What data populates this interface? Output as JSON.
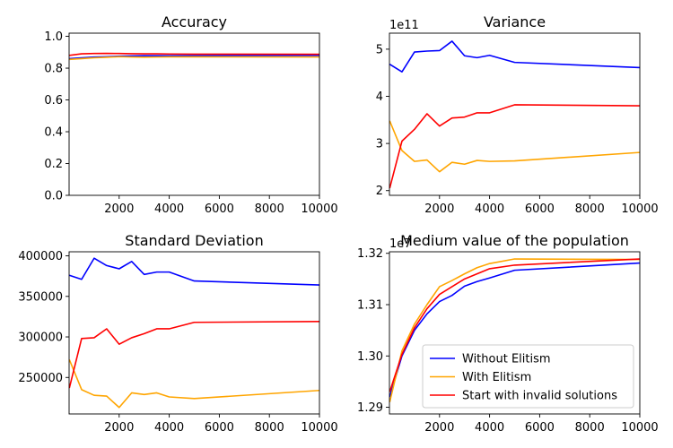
{
  "colors": {
    "without_elitism": "#0000ff",
    "with_elitism": "#ffa500",
    "invalid_start": "#ff0000"
  },
  "legend": {
    "placement": "lower-right",
    "in_panel": 3,
    "entries": [
      "Without Elitism",
      "With Elitism",
      "Start with invalid solutions"
    ]
  },
  "chart_data": [
    {
      "type": "line",
      "title": "Accuracy",
      "xlabel": "",
      "ylabel": "",
      "xlim": [
        0,
        10000
      ],
      "ylim": [
        0,
        1.02
      ],
      "xticks": [
        2000,
        4000,
        6000,
        8000,
        10000
      ],
      "xtick_labels": [
        "2000",
        "4000",
        "6000",
        "8000",
        "10000"
      ],
      "yticks": [
        0,
        0.2,
        0.4,
        0.6,
        0.8,
        1.0
      ],
      "ytick_labels": [
        "0.0",
        "0.2",
        "0.4",
        "0.6",
        "0.8",
        "1.0"
      ],
      "offset_text": "",
      "grid": false,
      "x": [
        10,
        500,
        1000,
        1500,
        2000,
        2500,
        3000,
        3500,
        4000,
        5000,
        10000
      ],
      "series": [
        {
          "name": "Without Elitism",
          "color_key": "without_elitism",
          "values": [
            0.86,
            0.865,
            0.87,
            0.872,
            0.875,
            0.877,
            0.878,
            0.878,
            0.878,
            0.879,
            0.88
          ]
        },
        {
          "name": "With Elitism",
          "color_key": "with_elitism",
          "values": [
            0.855,
            0.86,
            0.865,
            0.868,
            0.872,
            0.87,
            0.869,
            0.87,
            0.871,
            0.871,
            0.87
          ]
        },
        {
          "name": "Start with invalid solutions",
          "color_key": "invalid_start",
          "values": [
            0.88,
            0.89,
            0.892,
            0.893,
            0.892,
            0.891,
            0.89,
            0.89,
            0.889,
            0.888,
            0.887
          ]
        }
      ]
    },
    {
      "type": "line",
      "title": "Variance",
      "xlabel": "",
      "ylabel": "",
      "xlim": [
        0,
        10000
      ],
      "ylim": [
        1.9,
        5.34
      ],
      "xticks": [
        2000,
        4000,
        6000,
        8000,
        10000
      ],
      "xtick_labels": [
        "2000",
        "4000",
        "6000",
        "8000",
        "10000"
      ],
      "yticks": [
        2,
        3,
        4,
        5
      ],
      "ytick_labels": [
        "2",
        "3",
        "4",
        "5"
      ],
      "offset_text": "1e11",
      "grid": false,
      "x": [
        10,
        500,
        1000,
        1500,
        2000,
        2500,
        3000,
        3500,
        4000,
        5000,
        10000
      ],
      "series": [
        {
          "name": "Without Elitism",
          "color_key": "without_elitism",
          "values": [
            4.68,
            4.52,
            4.94,
            4.96,
            4.97,
            5.17,
            4.86,
            4.82,
            4.87,
            4.72,
            4.61
          ]
        },
        {
          "name": "With Elitism",
          "color_key": "with_elitism",
          "values": [
            3.48,
            2.85,
            2.62,
            2.65,
            2.4,
            2.6,
            2.56,
            2.64,
            2.62,
            2.63,
            2.81
          ]
        },
        {
          "name": "Start with invalid solutions",
          "color_key": "invalid_start",
          "values": [
            2.05,
            3.05,
            3.3,
            3.63,
            3.37,
            3.54,
            3.56,
            3.65,
            3.65,
            3.82,
            3.8
          ]
        }
      ]
    },
    {
      "type": "line",
      "title": "Standard Deviation",
      "xlabel": "",
      "ylabel": "",
      "xlim": [
        0,
        10000
      ],
      "ylim": [
        205000,
        405000
      ],
      "xticks": [
        2000,
        4000,
        6000,
        8000,
        10000
      ],
      "xtick_labels": [
        "2000",
        "4000",
        "6000",
        "8000",
        "10000"
      ],
      "yticks": [
        250000,
        300000,
        350000,
        400000
      ],
      "ytick_labels": [
        "250000",
        "300000",
        "350000",
        "400000"
      ],
      "offset_text": "",
      "grid": false,
      "x": [
        10,
        500,
        1000,
        1500,
        2000,
        2500,
        3000,
        3500,
        4000,
        5000,
        10000
      ],
      "series": [
        {
          "name": "Without Elitism",
          "color_key": "without_elitism",
          "values": [
            376000,
            371000,
            397000,
            388000,
            384000,
            393000,
            377000,
            380000,
            380000,
            369000,
            364000
          ]
        },
        {
          "name": "With Elitism",
          "color_key": "with_elitism",
          "values": [
            272000,
            235000,
            228000,
            227000,
            213000,
            231000,
            229000,
            231000,
            226000,
            224000,
            234000
          ]
        },
        {
          "name": "Start with invalid solutions",
          "color_key": "invalid_start",
          "values": [
            237000,
            298000,
            299000,
            310000,
            291000,
            299000,
            304000,
            310000,
            310000,
            318000,
            319000
          ]
        }
      ]
    },
    {
      "type": "line",
      "title": "Medium value of the population",
      "xlabel": "",
      "ylabel": "",
      "xlim": [
        0,
        10000
      ],
      "ylim": [
        1.2887,
        1.3203
      ],
      "xticks": [
        2000,
        4000,
        6000,
        8000,
        10000
      ],
      "xtick_labels": [
        "2000",
        "4000",
        "6000",
        "8000",
        "10000"
      ],
      "yticks": [
        1.29,
        1.3,
        1.31,
        1.32
      ],
      "ytick_labels": [
        "1.29",
        "1.30",
        "1.31",
        "1.32"
      ],
      "offset_text": "1e7",
      "grid": false,
      "x": [
        10,
        500,
        1000,
        1500,
        2000,
        2500,
        3000,
        3500,
        4000,
        5000,
        10000
      ],
      "series": [
        {
          "name": "Without Elitism",
          "color_key": "without_elitism",
          "values": [
            1.292,
            1.3,
            1.305,
            1.3082,
            1.3106,
            1.3118,
            1.3136,
            1.3145,
            1.3152,
            1.3167,
            1.3181
          ]
        },
        {
          "name": "With Elitism",
          "color_key": "with_elitism",
          "values": [
            1.291,
            1.301,
            1.3062,
            1.31,
            1.3135,
            1.3147,
            1.316,
            1.3172,
            1.318,
            1.3189,
            1.3188
          ]
        },
        {
          "name": "Start with invalid solutions",
          "color_key": "invalid_start",
          "values": [
            1.293,
            1.3003,
            1.3055,
            1.3092,
            1.312,
            1.3135,
            1.315,
            1.316,
            1.317,
            1.3177,
            1.3189
          ]
        }
      ]
    }
  ]
}
